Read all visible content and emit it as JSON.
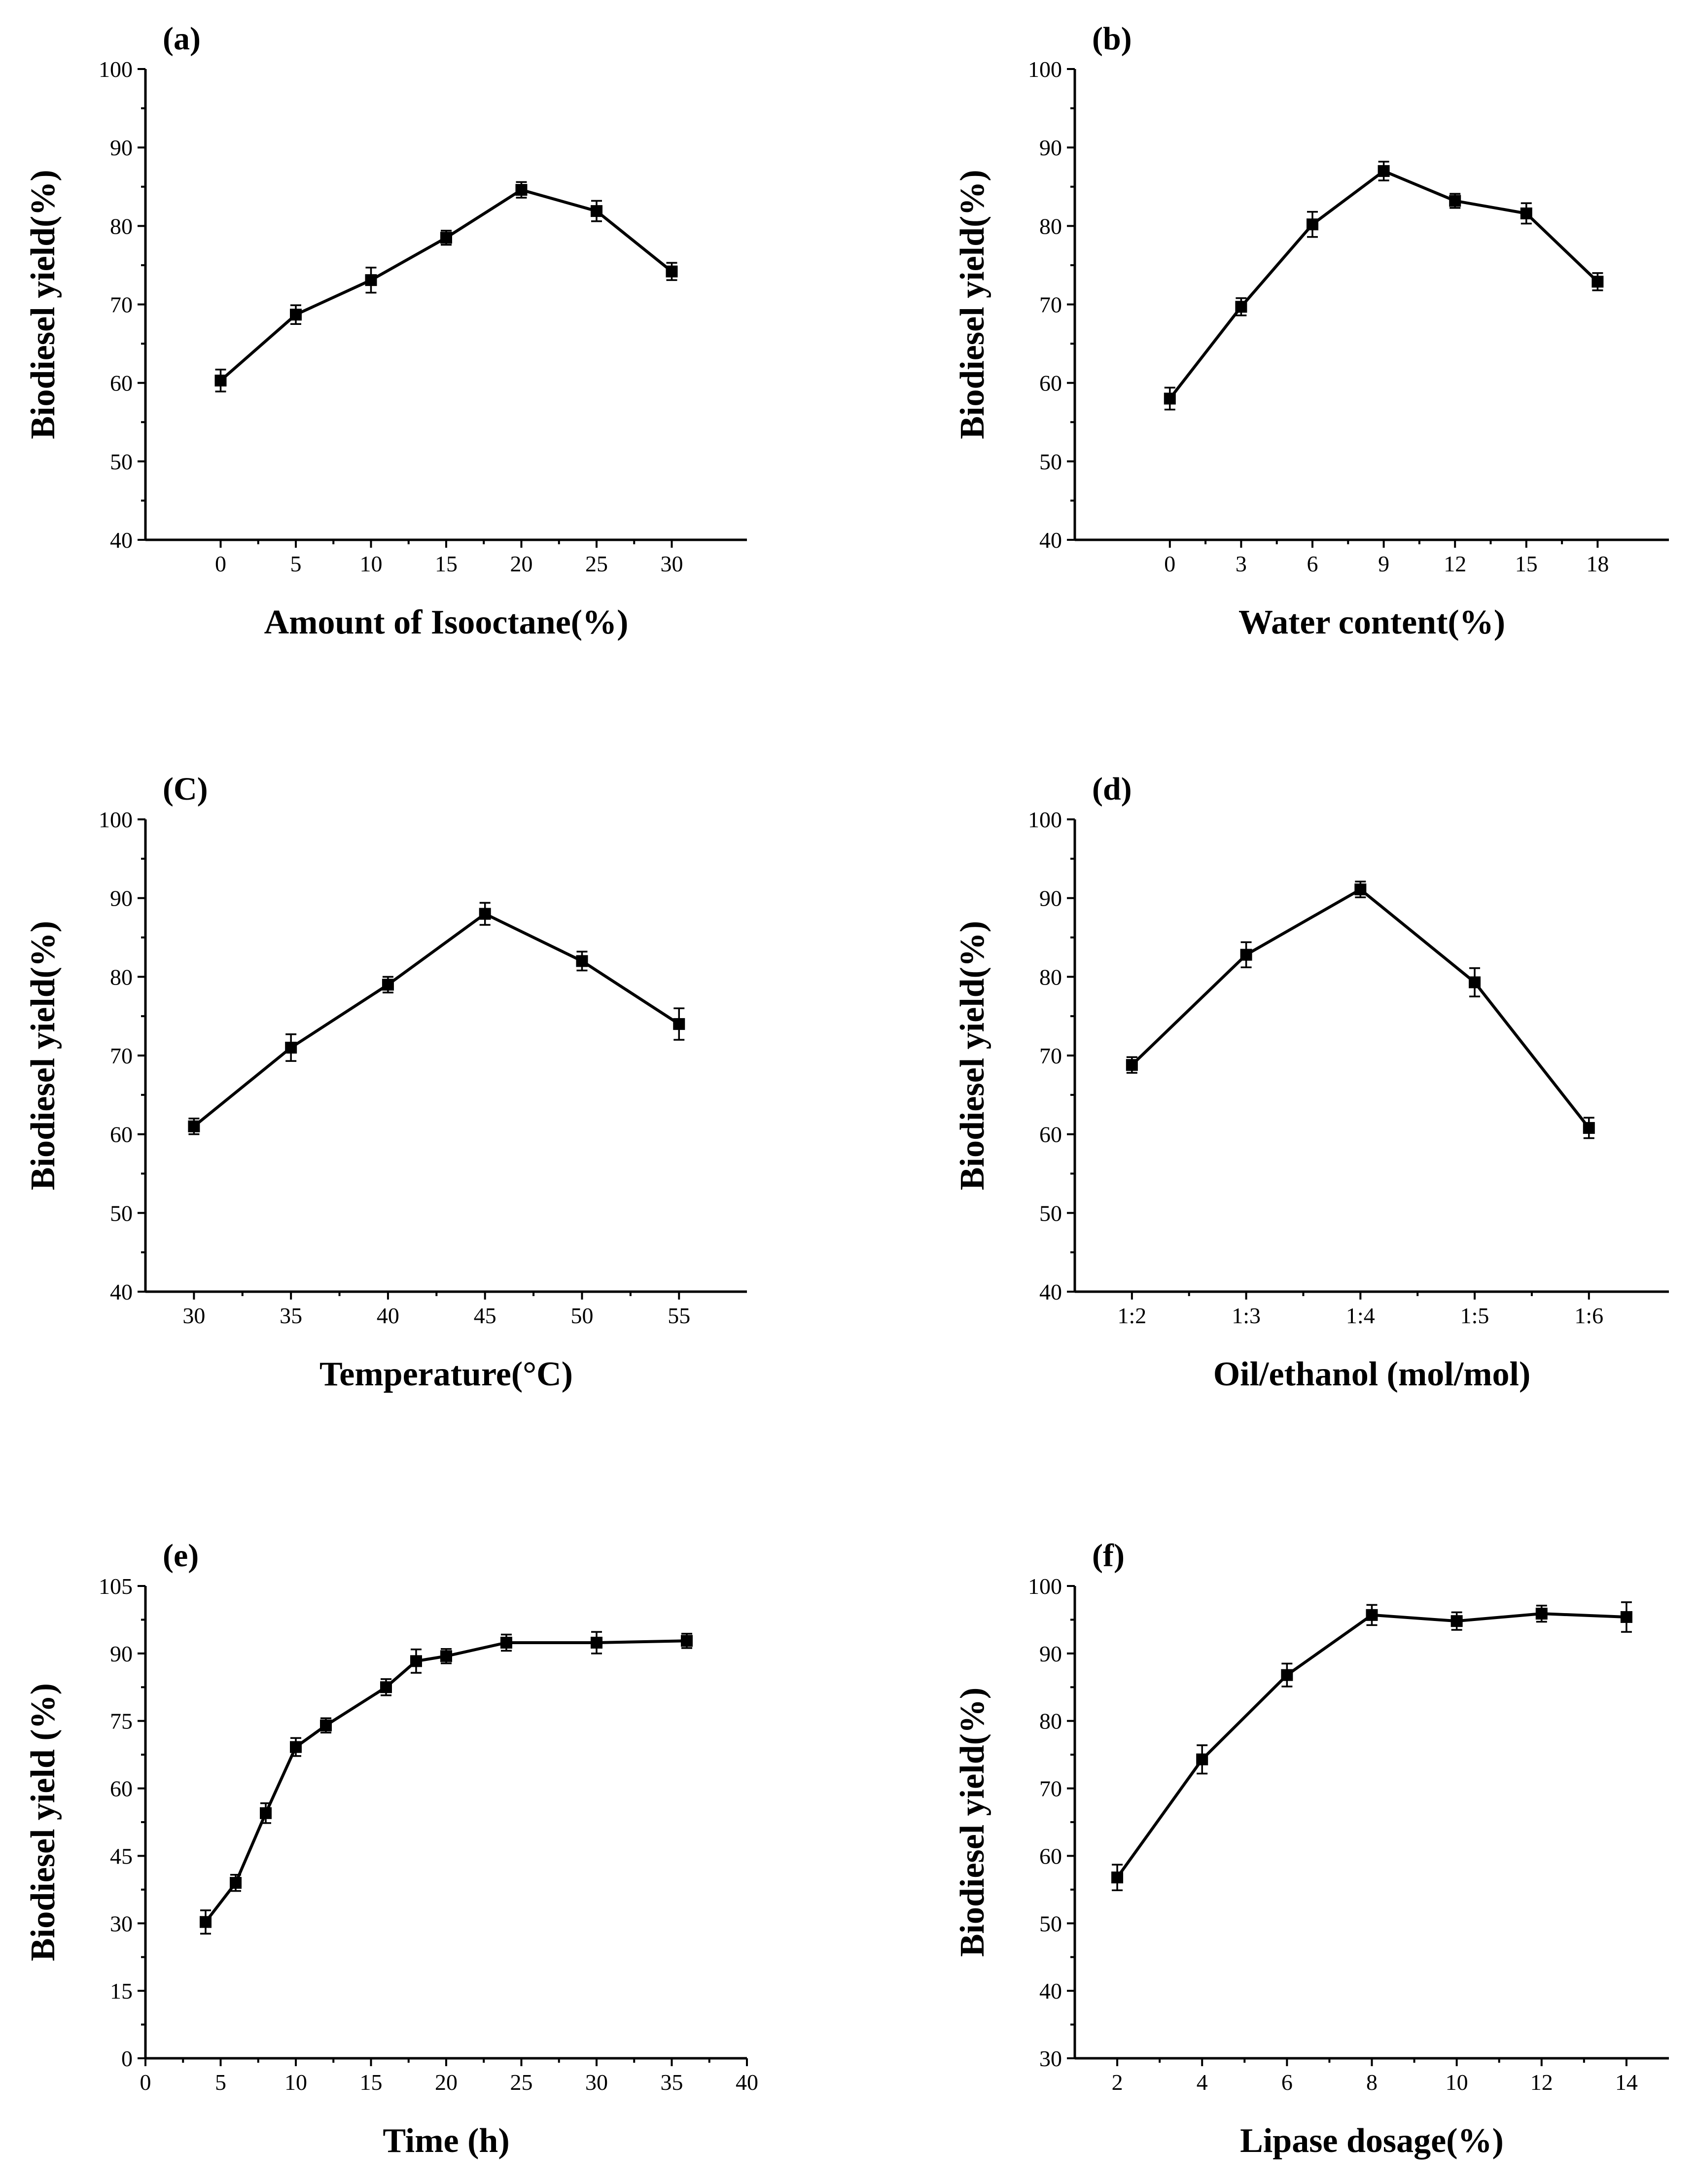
{
  "chart_data": [
    {
      "id": "a",
      "type": "line",
      "panel_label": "(a)",
      "xlabel": "Amount of Isooctane(%)",
      "ylabel": "Biodiesel yield(%)",
      "xaxis": "numeric",
      "xlim": [
        -5,
        35
      ],
      "ylim": [
        40,
        100
      ],
      "xticks": [
        0,
        5,
        10,
        15,
        20,
        25,
        30
      ],
      "xtick_labels": [
        "0",
        "5",
        "10",
        "15",
        "20",
        "25",
        "30"
      ],
      "yticks": [
        40,
        50,
        60,
        70,
        80,
        90,
        100
      ],
      "ytick_labels": [
        "40",
        "50",
        "60",
        "70",
        "80",
        "90",
        "100"
      ],
      "x": [
        0,
        5,
        10,
        15,
        20,
        25,
        30
      ],
      "y": [
        60.3,
        68.7,
        73.1,
        78.5,
        84.6,
        81.9,
        74.2
      ],
      "err": [
        1.4,
        1.2,
        1.6,
        0.9,
        1.0,
        1.3,
        1.1
      ]
    },
    {
      "id": "b",
      "type": "line",
      "panel_label": "(b)",
      "xlabel": "Water content(%)",
      "ylabel": "Biodiesel yield(%)",
      "xaxis": "numeric",
      "xlim": [
        -4,
        21
      ],
      "ylim": [
        40,
        100
      ],
      "xticks": [
        0,
        3,
        6,
        9,
        12,
        15,
        18
      ],
      "xtick_labels": [
        "0",
        "3",
        "6",
        "9",
        "12",
        "15",
        "18"
      ],
      "yticks": [
        40,
        50,
        60,
        70,
        80,
        90,
        100
      ],
      "ytick_labels": [
        "40",
        "50",
        "60",
        "70",
        "80",
        "90",
        "100"
      ],
      "x": [
        0,
        3,
        6,
        9,
        12,
        15,
        18
      ],
      "y": [
        58.0,
        69.7,
        80.2,
        87.0,
        83.2,
        81.6,
        72.9
      ],
      "err": [
        1.4,
        1.1,
        1.6,
        1.2,
        0.9,
        1.3,
        1.1
      ]
    },
    {
      "id": "c",
      "type": "line",
      "panel_label": "(C)",
      "xlabel": "Temperature(°C)",
      "ylabel": "Biodiesel yield(%)",
      "xaxis": "numeric",
      "xlim": [
        27.5,
        58.5
      ],
      "ylim": [
        40,
        100
      ],
      "xticks": [
        30,
        35,
        40,
        45,
        50,
        55
      ],
      "xtick_labels": [
        "30",
        "35",
        "40",
        "45",
        "50",
        "55"
      ],
      "yticks": [
        40,
        50,
        60,
        70,
        80,
        90,
        100
      ],
      "ytick_labels": [
        "40",
        "50",
        "60",
        "70",
        "80",
        "90",
        "100"
      ],
      "x": [
        30,
        35,
        40,
        45,
        50,
        55
      ],
      "y": [
        61.0,
        71.0,
        79.0,
        88.0,
        82.0,
        74.0
      ],
      "err": [
        1.0,
        1.7,
        1.0,
        1.4,
        1.2,
        2.0
      ]
    },
    {
      "id": "d",
      "type": "line",
      "panel_label": "(d)",
      "xlabel": "Oil/ethanol (mol/mol)",
      "ylabel": "Biodiesel yield(%)",
      "xaxis": "categorical",
      "categories": [
        "1:2",
        "1:3",
        "1:4",
        "1:5",
        "1:6"
      ],
      "xlim": [
        -0.5,
        4.7
      ],
      "ylim": [
        40,
        100
      ],
      "xticks": [
        0,
        1,
        2,
        3,
        4
      ],
      "xtick_labels": [
        "1:2",
        "1:3",
        "1:4",
        "1:5",
        "1:6"
      ],
      "yticks": [
        40,
        50,
        60,
        70,
        80,
        90,
        100
      ],
      "ytick_labels": [
        "40",
        "50",
        "60",
        "70",
        "80",
        "90",
        "100"
      ],
      "x": [
        0,
        1,
        2,
        3,
        4
      ],
      "y": [
        68.8,
        82.8,
        91.1,
        79.3,
        60.8
      ],
      "err": [
        1.0,
        1.6,
        1.0,
        1.8,
        1.3
      ]
    },
    {
      "id": "e",
      "type": "line",
      "panel_label": "(e)",
      "xlabel": "Time (h)",
      "ylabel": "Biodiesel yield (%)",
      "xaxis": "numeric",
      "xlim": [
        0,
        40
      ],
      "ylim": [
        0,
        105
      ],
      "xticks": [
        0,
        5,
        10,
        15,
        20,
        25,
        30,
        35,
        40
      ],
      "xtick_labels": [
        "0",
        "5",
        "10",
        "15",
        "20",
        "25",
        "30",
        "35",
        "40"
      ],
      "yticks": [
        0,
        15,
        30,
        45,
        60,
        75,
        90,
        105
      ],
      "ytick_labels": [
        "0",
        "15",
        "30",
        "45",
        "60",
        "75",
        "90",
        "105"
      ],
      "x": [
        4,
        6,
        8,
        10,
        12,
        16,
        18,
        20,
        24,
        30,
        36
      ],
      "y": [
        30.3,
        39.0,
        54.5,
        69.2,
        74.0,
        82.5,
        88.3,
        89.4,
        92.4,
        92.4,
        92.8
      ],
      "err": [
        2.6,
        1.8,
        2.2,
        2.0,
        1.6,
        1.8,
        2.6,
        1.6,
        1.8,
        2.4,
        1.6
      ]
    },
    {
      "id": "f",
      "type": "line",
      "panel_label": "(f)",
      "xlabel": "Lipase dosage(%)",
      "ylabel": "Biodiesel yield(%)",
      "xaxis": "numeric",
      "xlim": [
        1,
        15
      ],
      "ylim": [
        30,
        100
      ],
      "xticks": [
        2,
        4,
        6,
        8,
        10,
        12,
        14
      ],
      "xtick_labels": [
        "2",
        "4",
        "6",
        "8",
        "10",
        "12",
        "14"
      ],
      "yticks": [
        30,
        40,
        50,
        60,
        70,
        80,
        90,
        100
      ],
      "ytick_labels": [
        "30",
        "40",
        "50",
        "60",
        "70",
        "80",
        "90",
        "100"
      ],
      "x": [
        2,
        4,
        6,
        8,
        10,
        12,
        14
      ],
      "y": [
        56.8,
        74.3,
        86.8,
        95.7,
        94.8,
        95.9,
        95.4
      ],
      "err": [
        1.9,
        2.1,
        1.7,
        1.5,
        1.3,
        1.2,
        2.2
      ]
    }
  ]
}
